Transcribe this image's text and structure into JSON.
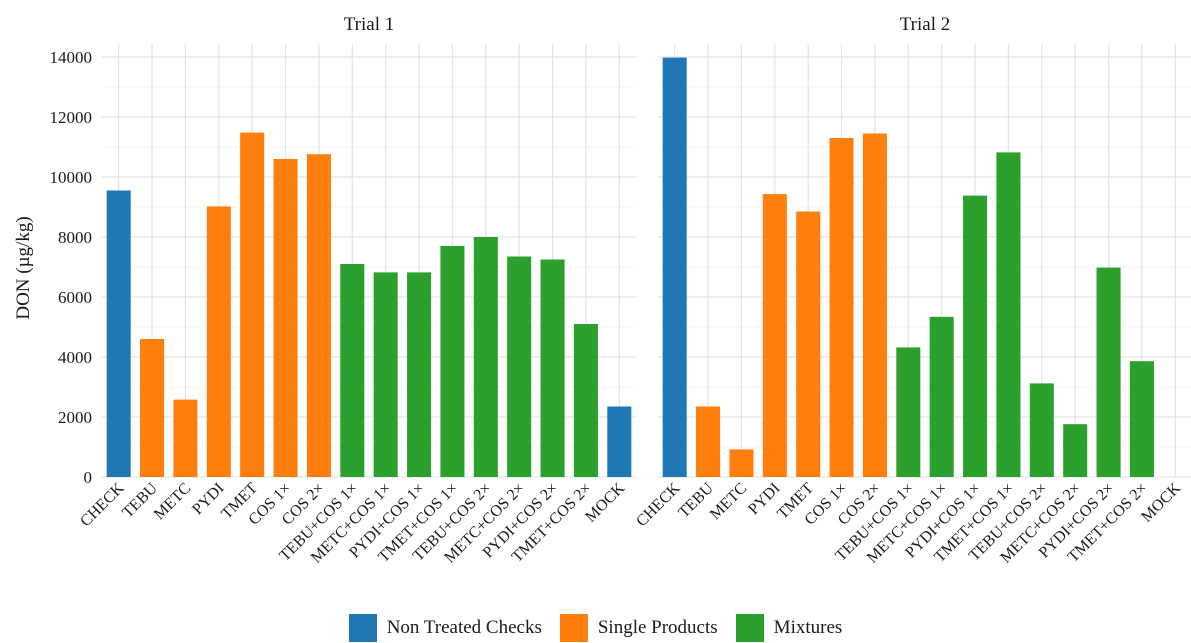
{
  "chart_data": {
    "type": "bar",
    "ylabel": "DON (µg/kg)",
    "ylim": [
      0,
      14500
    ],
    "yticks": [
      0,
      2000,
      4000,
      6000,
      8000,
      10000,
      12000,
      14000
    ],
    "grid": true,
    "legend_position": "bottom",
    "categories": [
      "CHECK",
      "TEBU",
      "METC",
      "PYDI",
      "TMET",
      "COS 1×",
      "COS 2×",
      "TEBU+COS 1×",
      "METC+COS 1×",
      "PYDI+COS 1×",
      "TMET+COS 1×",
      "TEBU+COS 2×",
      "METC+COS 2×",
      "PYDI+COS 2×",
      "TMET+COS 2×",
      "MOCK"
    ],
    "groups": [
      "Non Treated Checks",
      "Single Products",
      "Single Products",
      "Single Products",
      "Single Products",
      "Single Products",
      "Single Products",
      "Mixtures",
      "Mixtures",
      "Mixtures",
      "Mixtures",
      "Mixtures",
      "Mixtures",
      "Mixtures",
      "Mixtures",
      "Non Treated Checks"
    ],
    "legend": [
      {
        "name": "Non Treated Checks",
        "color": "#1f77b4"
      },
      {
        "name": "Single Products",
        "color": "#ff7f0e"
      },
      {
        "name": "Mixtures",
        "color": "#2ca02c"
      }
    ],
    "panels": [
      {
        "title": "Trial 1",
        "values": [
          9550,
          4600,
          2580,
          9020,
          11480,
          10600,
          10760,
          7100,
          6820,
          6820,
          7700,
          8000,
          7350,
          7250,
          5100,
          2350
        ]
      },
      {
        "title": "Trial 2",
        "values": [
          13980,
          2350,
          920,
          9430,
          8850,
          11300,
          11450,
          4320,
          5340,
          9380,
          10820,
          3120,
          1760,
          6980,
          3860,
          0
        ]
      }
    ]
  }
}
